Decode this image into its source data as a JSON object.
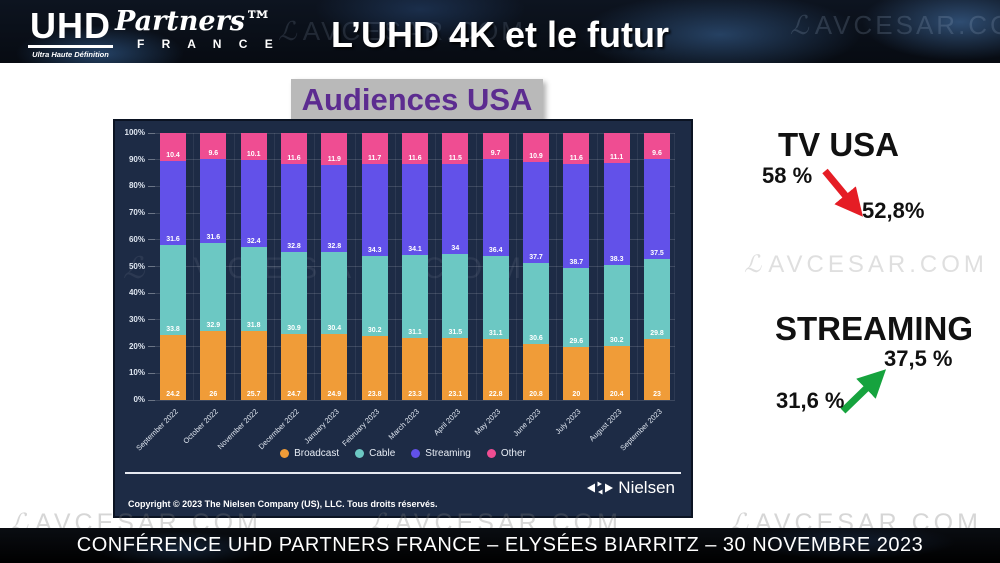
{
  "header": {
    "logo": {
      "uhd": "UHD",
      "subtitle": "Ultra Haute Définition",
      "partners": "Partners™",
      "france": "F R A N C E"
    },
    "title": "L’UHD 4K et le futur"
  },
  "watermark": {
    "prefix": "ℒ",
    "text": "AVCESAR.COM"
  },
  "slide": {
    "section_title": "Audiences USA"
  },
  "chart_data": {
    "type": "bar",
    "stacked": true,
    "title": "Audiences USA",
    "categories": [
      "September 2022",
      "October 2022",
      "November 2022",
      "December 2022",
      "January 2023",
      "February 2023",
      "March 2023",
      "April 2023",
      "May 2023",
      "June 2023",
      "July 2023",
      "August 2023",
      "September 2023"
    ],
    "series": [
      {
        "name": "Broadcast",
        "color": "#f09c38",
        "values": [
          24.2,
          26,
          25.7,
          24.7,
          24.9,
          23.8,
          23.3,
          23.1,
          22.8,
          20.8,
          20,
          20.4,
          23
        ]
      },
      {
        "name": "Cable",
        "color": "#6cc8c3",
        "values": [
          33.8,
          32.9,
          31.8,
          30.9,
          30.4,
          30.2,
          31.1,
          31.5,
          31.1,
          30.6,
          29.6,
          30.2,
          29.8
        ]
      },
      {
        "name": "Streaming",
        "color": "#6251e9",
        "values": [
          31.6,
          31.6,
          32.4,
          32.8,
          32.8,
          34.3,
          34.1,
          34,
          36.4,
          37.7,
          38.7,
          38.3,
          37.5
        ]
      },
      {
        "name": "Other",
        "color": "#ef4d92",
        "values": [
          10.4,
          9.6,
          10.1,
          11.6,
          11.9,
          11.7,
          11.6,
          11.5,
          9.7,
          10.9,
          11.6,
          11.1,
          9.6
        ]
      }
    ],
    "y_ticks": [
      "0%",
      "10%",
      "20%",
      "30%",
      "40%",
      "50%",
      "60%",
      "70%",
      "80%",
      "90%",
      "100%"
    ],
    "ylim": [
      0,
      100
    ],
    "grid": true,
    "legend_position": "bottom",
    "background_color": "#1d2b45"
  },
  "chart_footer": {
    "copyright": "Copyright © 2023 The Nielsen Company (US), LLC. Tous droits réservés.",
    "brand": "Nielsen"
  },
  "annotations": {
    "tv": {
      "title": "TV USA",
      "from": "58 %",
      "to": "52,8%",
      "arrow_color": "#e51d25",
      "direction": "down"
    },
    "streaming": {
      "title": "STREAMING",
      "from": "31,6 %",
      "to": "37,5 %",
      "arrow_color": "#16a33e",
      "direction": "up"
    }
  },
  "footer": {
    "text": "CONFÉRENCE UHD PARTNERS FRANCE – ELYSÉES BIARRITZ – 30 NOVEMBRE 2023"
  }
}
